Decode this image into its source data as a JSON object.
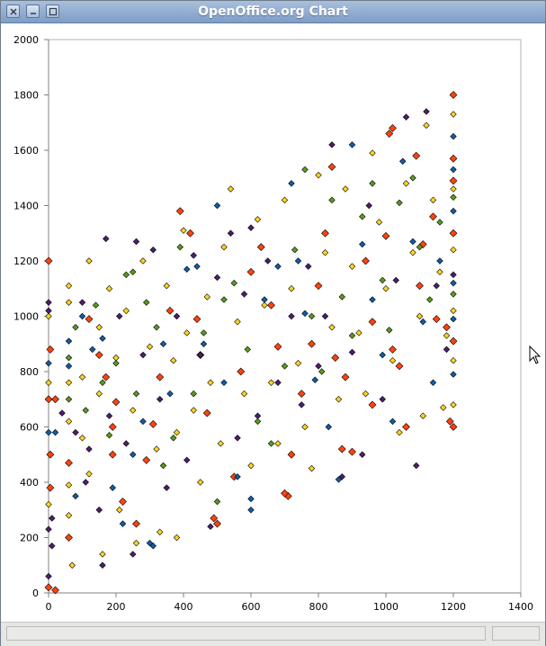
{
  "window": {
    "title": "OpenOffice.org Chart"
  },
  "icons": {
    "close": "close-icon",
    "minimize": "minimize-icon",
    "maximize": "maximize-icon",
    "cursor": "mouse-pointer-icon"
  },
  "colors": {
    "series_1": "#0e5ea8",
    "series_2": "#ff420e",
    "series_3": "#ffd320",
    "series_4": "#579d1c",
    "series_5": "#4b1f6f",
    "grid_frame": "#b3b3b3",
    "axis": "#808080"
  },
  "chart_data": {
    "type": "scatter",
    "title": "",
    "xlabel": "",
    "ylabel": "",
    "xlim": [
      0,
      1400
    ],
    "ylim": [
      0,
      2000
    ],
    "x_ticks": [
      "0",
      "200",
      "400",
      "600",
      "800",
      "1000",
      "1200",
      "1400"
    ],
    "y_ticks": [
      "0",
      "200",
      "400",
      "600",
      "800",
      "1000",
      "1200",
      "1400",
      "1600",
      "1800",
      "2000"
    ],
    "grid": false,
    "legend": "none",
    "marker": "diamond",
    "series": [
      {
        "color": "#ff420e",
        "points": [
          [
            0,
            1200
          ],
          [
            0,
            700
          ],
          [
            20,
            700
          ],
          [
            5,
            880
          ],
          [
            5,
            500
          ],
          [
            5,
            380
          ],
          [
            0,
            20
          ],
          [
            20,
            10
          ],
          [
            60,
            200
          ],
          [
            60,
            470
          ],
          [
            120,
            990
          ],
          [
            150,
            860
          ],
          [
            170,
            780
          ],
          [
            200,
            690
          ],
          [
            190,
            600
          ],
          [
            190,
            500
          ],
          [
            220,
            330
          ],
          [
            260,
            250
          ],
          [
            290,
            480
          ],
          [
            310,
            610
          ],
          [
            330,
            780
          ],
          [
            360,
            1020
          ],
          [
            390,
            1380
          ],
          [
            420,
            1300
          ],
          [
            440,
            990
          ],
          [
            450,
            860
          ],
          [
            470,
            650
          ],
          [
            500,
            250
          ],
          [
            490,
            270
          ],
          [
            550,
            420
          ],
          [
            570,
            800
          ],
          [
            600,
            1160
          ],
          [
            630,
            1250
          ],
          [
            660,
            1040
          ],
          [
            680,
            890
          ],
          [
            710,
            350
          ],
          [
            700,
            360
          ],
          [
            720,
            500
          ],
          [
            750,
            720
          ],
          [
            780,
            900
          ],
          [
            800,
            1110
          ],
          [
            820,
            1300
          ],
          [
            840,
            1540
          ],
          [
            850,
            850
          ],
          [
            880,
            780
          ],
          [
            870,
            520
          ],
          [
            900,
            510
          ],
          [
            940,
            1200
          ],
          [
            960,
            980
          ],
          [
            960,
            680
          ],
          [
            1000,
            1290
          ],
          [
            1010,
            1660
          ],
          [
            1020,
            1680
          ],
          [
            1020,
            880
          ],
          [
            1040,
            820
          ],
          [
            1060,
            600
          ],
          [
            1090,
            1580
          ],
          [
            1100,
            1110
          ],
          [
            1110,
            1260
          ],
          [
            1140,
            1360
          ],
          [
            1150,
            990
          ],
          [
            1180,
            960
          ],
          [
            1190,
            620
          ],
          [
            1200,
            600
          ],
          [
            1200,
            1800
          ],
          [
            1200,
            1570
          ],
          [
            1200,
            1490
          ],
          [
            1200,
            1300
          ],
          [
            1200,
            910
          ]
        ]
      },
      {
        "color": "#0e5ea8",
        "points": [
          [
            0,
            830
          ],
          [
            0,
            580
          ],
          [
            20,
            580
          ],
          [
            60,
            910
          ],
          [
            60,
            820
          ],
          [
            80,
            350
          ],
          [
            100,
            1000
          ],
          [
            130,
            880
          ],
          [
            160,
            920
          ],
          [
            190,
            380
          ],
          [
            220,
            250
          ],
          [
            250,
            500
          ],
          [
            280,
            620
          ],
          [
            300,
            180
          ],
          [
            310,
            170
          ],
          [
            340,
            900
          ],
          [
            360,
            720
          ],
          [
            410,
            1170
          ],
          [
            440,
            1180
          ],
          [
            460,
            900
          ],
          [
            500,
            1400
          ],
          [
            520,
            760
          ],
          [
            560,
            420
          ],
          [
            600,
            300
          ],
          [
            600,
            340
          ],
          [
            640,
            1060
          ],
          [
            680,
            1180
          ],
          [
            720,
            1480
          ],
          [
            740,
            1200
          ],
          [
            760,
            1010
          ],
          [
            790,
            770
          ],
          [
            830,
            600
          ],
          [
            860,
            410
          ],
          [
            900,
            1620
          ],
          [
            930,
            1260
          ],
          [
            960,
            1060
          ],
          [
            990,
            860
          ],
          [
            1020,
            620
          ],
          [
            1050,
            1560
          ],
          [
            1080,
            1270
          ],
          [
            1110,
            980
          ],
          [
            1140,
            760
          ],
          [
            1160,
            1200
          ],
          [
            1200,
            1650
          ],
          [
            1200,
            1530
          ],
          [
            1200,
            1380
          ],
          [
            1200,
            1120
          ],
          [
            1200,
            990
          ],
          [
            1200,
            790
          ]
        ]
      },
      {
        "color": "#ffd320",
        "points": [
          [
            0,
            760
          ],
          [
            0,
            1000
          ],
          [
            0,
            320
          ],
          [
            60,
            1110
          ],
          [
            60,
            1050
          ],
          [
            60,
            760
          ],
          [
            60,
            620
          ],
          [
            60,
            390
          ],
          [
            60,
            280
          ],
          [
            70,
            100
          ],
          [
            100,
            780
          ],
          [
            100,
            560
          ],
          [
            120,
            1200
          ],
          [
            120,
            430
          ],
          [
            150,
            960
          ],
          [
            150,
            720
          ],
          [
            160,
            140
          ],
          [
            180,
            1100
          ],
          [
            200,
            850
          ],
          [
            210,
            300
          ],
          [
            230,
            1020
          ],
          [
            250,
            660
          ],
          [
            260,
            180
          ],
          [
            280,
            1200
          ],
          [
            300,
            890
          ],
          [
            320,
            520
          ],
          [
            330,
            220
          ],
          [
            350,
            1110
          ],
          [
            370,
            840
          ],
          [
            380,
            580
          ],
          [
            380,
            200
          ],
          [
            400,
            1310
          ],
          [
            410,
            940
          ],
          [
            430,
            660
          ],
          [
            450,
            400
          ],
          [
            470,
            1070
          ],
          [
            480,
            760
          ],
          [
            510,
            540
          ],
          [
            520,
            1250
          ],
          [
            540,
            1460
          ],
          [
            560,
            980
          ],
          [
            580,
            720
          ],
          [
            600,
            460
          ],
          [
            620,
            1350
          ],
          [
            640,
            1040
          ],
          [
            660,
            760
          ],
          [
            680,
            540
          ],
          [
            700,
            1420
          ],
          [
            720,
            1100
          ],
          [
            740,
            830
          ],
          [
            760,
            600
          ],
          [
            780,
            450
          ],
          [
            800,
            1510
          ],
          [
            820,
            1230
          ],
          [
            840,
            960
          ],
          [
            860,
            700
          ],
          [
            880,
            1460
          ],
          [
            900,
            1180
          ],
          [
            920,
            940
          ],
          [
            940,
            720
          ],
          [
            960,
            1590
          ],
          [
            980,
            1340
          ],
          [
            1000,
            1100
          ],
          [
            1020,
            840
          ],
          [
            1040,
            580
          ],
          [
            1060,
            1480
          ],
          [
            1080,
            1230
          ],
          [
            1100,
            1000
          ],
          [
            1110,
            640
          ],
          [
            1120,
            1690
          ],
          [
            1140,
            1420
          ],
          [
            1160,
            1160
          ],
          [
            1170,
            670
          ],
          [
            1180,
            930
          ],
          [
            1200,
            1730
          ],
          [
            1200,
            1460
          ],
          [
            1200,
            1240
          ],
          [
            1200,
            1020
          ],
          [
            1200,
            840
          ],
          [
            1200,
            680
          ]
        ]
      },
      {
        "color": "#579d1c",
        "points": [
          [
            60,
            850
          ],
          [
            60,
            700
          ],
          [
            80,
            960
          ],
          [
            110,
            660
          ],
          [
            140,
            1040
          ],
          [
            160,
            760
          ],
          [
            180,
            570
          ],
          [
            200,
            830
          ],
          [
            230,
            1150
          ],
          [
            250,
            1160
          ],
          [
            260,
            720
          ],
          [
            290,
            1050
          ],
          [
            320,
            960
          ],
          [
            340,
            460
          ],
          [
            370,
            560
          ],
          [
            390,
            1250
          ],
          [
            430,
            720
          ],
          [
            460,
            940
          ],
          [
            500,
            330
          ],
          [
            520,
            1060
          ],
          [
            550,
            1120
          ],
          [
            590,
            880
          ],
          [
            620,
            620
          ],
          [
            660,
            540
          ],
          [
            700,
            820
          ],
          [
            730,
            1240
          ],
          [
            760,
            1530
          ],
          [
            780,
            1000
          ],
          [
            810,
            800
          ],
          [
            840,
            1420
          ],
          [
            870,
            1070
          ],
          [
            900,
            930
          ],
          [
            930,
            1360
          ],
          [
            960,
            1480
          ],
          [
            990,
            1130
          ],
          [
            1010,
            950
          ],
          [
            1040,
            1410
          ],
          [
            1080,
            1500
          ],
          [
            1100,
            1250
          ],
          [
            1130,
            1060
          ],
          [
            1160,
            1340
          ],
          [
            1200,
            1430
          ],
          [
            1200,
            1080
          ]
        ]
      },
      {
        "color": "#4b1f6f",
        "points": [
          [
            0,
            1050
          ],
          [
            0,
            1020
          ],
          [
            0,
            230
          ],
          [
            0,
            60
          ],
          [
            10,
            170
          ],
          [
            10,
            270
          ],
          [
            40,
            650
          ],
          [
            80,
            580
          ],
          [
            100,
            1050
          ],
          [
            110,
            400
          ],
          [
            120,
            520
          ],
          [
            150,
            300
          ],
          [
            160,
            100
          ],
          [
            170,
            1280
          ],
          [
            180,
            640
          ],
          [
            210,
            1000
          ],
          [
            230,
            540
          ],
          [
            250,
            140
          ],
          [
            260,
            1270
          ],
          [
            280,
            860
          ],
          [
            310,
            1240
          ],
          [
            330,
            700
          ],
          [
            350,
            380
          ],
          [
            380,
            1000
          ],
          [
            410,
            480
          ],
          [
            430,
            1220
          ],
          [
            450,
            860
          ],
          [
            480,
            240
          ],
          [
            500,
            1140
          ],
          [
            540,
            1300
          ],
          [
            560,
            560
          ],
          [
            580,
            1080
          ],
          [
            600,
            1320
          ],
          [
            620,
            640
          ],
          [
            650,
            1200
          ],
          [
            680,
            760
          ],
          [
            720,
            1000
          ],
          [
            750,
            680
          ],
          [
            770,
            1180
          ],
          [
            800,
            820
          ],
          [
            820,
            1000
          ],
          [
            840,
            1620
          ],
          [
            870,
            420
          ],
          [
            900,
            870
          ],
          [
            930,
            500
          ],
          [
            950,
            1400
          ],
          [
            990,
            700
          ],
          [
            1030,
            1130
          ],
          [
            1060,
            1720
          ],
          [
            1090,
            460
          ],
          [
            1120,
            1740
          ],
          [
            1150,
            1110
          ],
          [
            1180,
            880
          ],
          [
            1200,
            1150
          ]
        ]
      }
    ]
  },
  "status": {
    "left": "",
    "right": ""
  }
}
